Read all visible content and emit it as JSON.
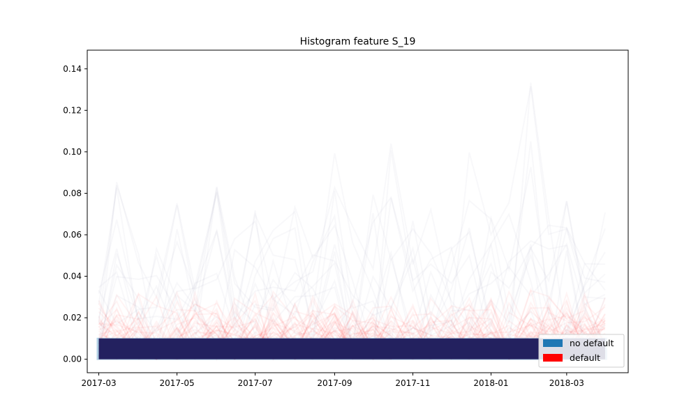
{
  "chart_data": {
    "type": "line",
    "title": "Histogram feature S_19",
    "xlabel": "",
    "ylabel": "",
    "x_ticks": [
      "2017-03",
      "2017-05",
      "2017-07",
      "2017-09",
      "2017-11",
      "2018-01",
      "2018-03"
    ],
    "y_ticks": [
      "0.00",
      "0.02",
      "0.04",
      "0.06",
      "0.08",
      "0.10",
      "0.12",
      "0.14"
    ],
    "xlim": [
      "2017-02-20",
      "2018-04-18"
    ],
    "ylim": [
      -0.0065,
      0.149
    ],
    "grid": false,
    "legend_position": "lower-right",
    "series": [
      {
        "name": "no default",
        "color": "#1f77b4",
        "x": [
          "2017-03-01",
          "2018-03-31"
        ],
        "y_min": [
          0.0,
          0.0
        ],
        "y_max": [
          0.01,
          0.01
        ]
      },
      {
        "name": "default",
        "color": "#ff0000",
        "x": [
          "2017-03-01",
          "2017-03-15",
          "2017-04-01",
          "2017-04-15",
          "2017-05-01",
          "2017-05-15",
          "2017-06-01",
          "2017-06-15",
          "2017-07-01",
          "2017-07-15",
          "2017-08-01",
          "2017-08-15",
          "2017-09-01",
          "2017-09-15",
          "2017-10-01",
          "2017-10-15",
          "2017-11-01",
          "2017-11-15",
          "2017-12-01",
          "2017-12-15",
          "2018-01-01",
          "2018-01-15",
          "2018-02-01",
          "2018-02-15",
          "2018-03-01",
          "2018-03-15",
          "2018-03-31"
        ],
        "y_max": [
          0.04,
          0.095,
          0.07,
          0.06,
          0.083,
          0.05,
          0.084,
          0.06,
          0.075,
          0.07,
          0.075,
          0.06,
          0.105,
          0.07,
          0.08,
          0.105,
          0.072,
          0.087,
          0.06,
          0.13,
          0.07,
          0.078,
          0.142,
          0.07,
          0.084,
          0.05,
          0.074
        ]
      }
    ]
  }
}
